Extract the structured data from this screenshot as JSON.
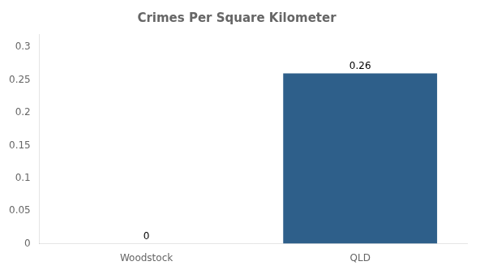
{
  "chart_data": {
    "type": "bar",
    "title": "Crimes Per Square Kilometer",
    "categories": [
      "Woodstock",
      "QLD"
    ],
    "values": [
      0,
      0.26
    ],
    "color": "#2e5f8a",
    "ylim": [
      0,
      0.32
    ],
    "yticks": [
      0,
      0.05,
      0.1,
      0.15,
      0.2,
      0.25,
      0.3
    ],
    "grid": false,
    "data_labels": true
  }
}
